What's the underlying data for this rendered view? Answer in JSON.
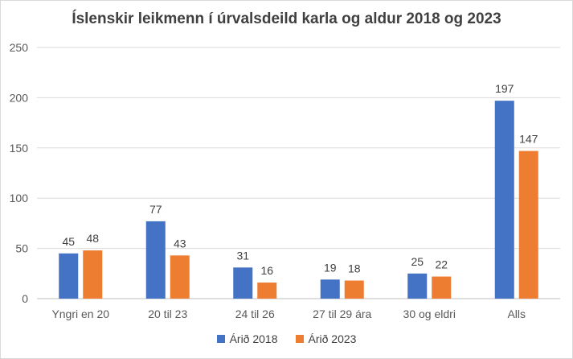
{
  "chart_data": {
    "type": "bar",
    "title": "Íslenskir leikmenn í úrvalsdeild karla og aldur 2018 og 2023",
    "xlabel": "",
    "ylabel": "",
    "categories": [
      "Yngri en 20",
      "20 til 23",
      "24 til 26",
      "27 til 29 ára",
      "30 og eldri",
      "Alls"
    ],
    "series": [
      {
        "name": "Árið 2018",
        "color": "#4472c4",
        "values": [
          45,
          77,
          31,
          19,
          25,
          197
        ]
      },
      {
        "name": "Árið 2023",
        "color": "#ed7d31",
        "values": [
          48,
          43,
          16,
          18,
          22,
          147
        ]
      }
    ],
    "ylim": [
      0,
      250
    ],
    "yticks": [
      "0",
      "50",
      "100",
      "150",
      "200",
      "250"
    ],
    "grid": true,
    "legend": "bottom",
    "data_labels": true
  }
}
